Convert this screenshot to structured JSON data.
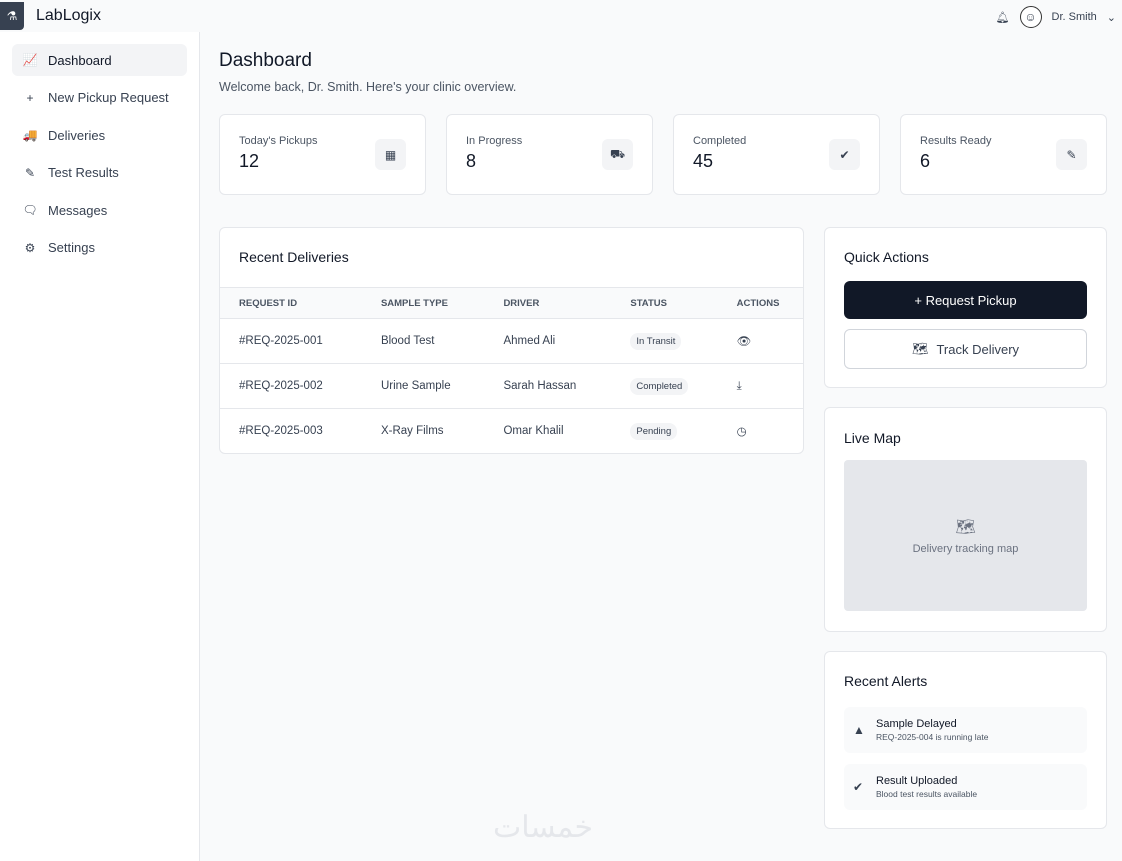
{
  "app": {
    "name": "LabLogix",
    "user": "Dr. Smith",
    "watermark": "خمسات"
  },
  "sidebar": {
    "items": [
      {
        "label": "Dashboard",
        "icon": "chart-line-icon",
        "glyph": "📈"
      },
      {
        "label": "New Pickup Request",
        "icon": "plus-icon",
        "glyph": "+"
      },
      {
        "label": "Deliveries",
        "icon": "truck-icon",
        "glyph": "🚚"
      },
      {
        "label": "Test Results",
        "icon": "pen-icon",
        "glyph": "✎"
      },
      {
        "label": "Messages",
        "icon": "message-icon",
        "glyph": "🗨"
      },
      {
        "label": "Settings",
        "icon": "gear-icon",
        "glyph": "⚙"
      }
    ]
  },
  "page": {
    "title": "Dashboard",
    "subtitle": "Welcome back, Dr. Smith. Here's your clinic overview."
  },
  "stats": [
    {
      "label": "Today's Pickups",
      "value": "12",
      "glyph": "▦"
    },
    {
      "label": "In Progress",
      "value": "8",
      "glyph": "⛟"
    },
    {
      "label": "Completed",
      "value": "45",
      "glyph": "✔"
    },
    {
      "label": "Results Ready",
      "value": "6",
      "glyph": "✎"
    }
  ],
  "deliveries": {
    "title": "Recent Deliveries",
    "columns": [
      "REQUEST ID",
      "SAMPLE TYPE",
      "DRIVER",
      "STATUS",
      "ACTIONS"
    ],
    "rows": [
      {
        "id": "#REQ-2025-001",
        "type": "Blood Test",
        "driver": "Ahmed Ali",
        "status": "In Transit",
        "action": "view",
        "glyph": "👁"
      },
      {
        "id": "#REQ-2025-002",
        "type": "Urine Sample",
        "driver": "Sarah Hassan",
        "status": "Completed",
        "action": "download",
        "glyph": "⤓"
      },
      {
        "id": "#REQ-2025-003",
        "type": "X-Ray Films",
        "driver": "Omar Khalil",
        "status": "Pending",
        "action": "clock",
        "glyph": "◷"
      }
    ]
  },
  "quick": {
    "title": "Quick Actions",
    "request": "+ Request Pickup",
    "track": "Track Delivery"
  },
  "map": {
    "title": "Live Map",
    "placeholder": "Delivery tracking map"
  },
  "alerts": {
    "title": "Recent Alerts",
    "items": [
      {
        "title": "Sample Delayed",
        "desc": "REQ-2025-004 is running late",
        "glyph": "▲"
      },
      {
        "title": "Result Uploaded",
        "desc": "Blood test results available",
        "glyph": "✔"
      }
    ]
  }
}
